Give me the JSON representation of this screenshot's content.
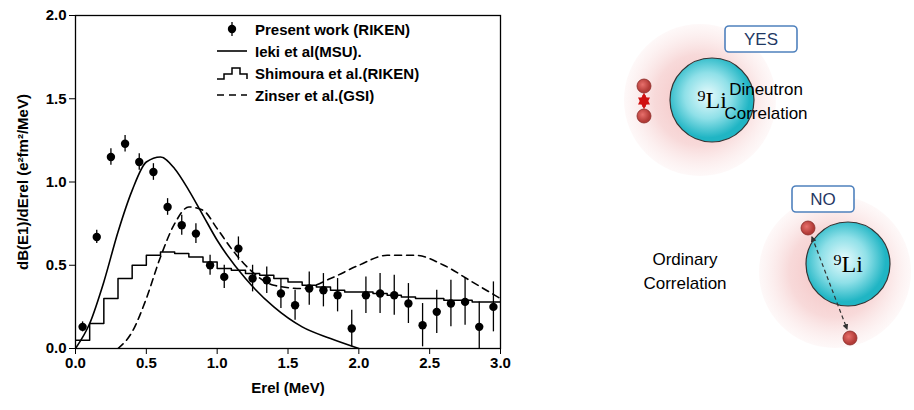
{
  "chart_data": {
    "type": "line",
    "x_label": "Erel (MeV)",
    "y_label": "dB(E1)/dErel (e²fm²/MeV)",
    "xlim": [
      0,
      3
    ],
    "ylim": [
      0,
      2
    ],
    "xticks": [
      {
        "value": 0,
        "label": "0.0"
      },
      0.5,
      {
        "value": 1,
        "label": "1.0"
      },
      1.5,
      {
        "value": 2,
        "label": "2.0"
      },
      2.5,
      {
        "value": 3,
        "label": "3.0"
      }
    ],
    "yticks": [
      {
        "value": 0,
        "label": "0.0"
      },
      0.5,
      {
        "value": 1,
        "label": "1.0"
      },
      1.5,
      {
        "value": 2,
        "label": "2.0"
      }
    ],
    "legend": "top-right",
    "series": [
      {
        "name": "Present work (RIKEN)",
        "type": "scatter",
        "marker": "circle",
        "color": "#000000",
        "x": [
          0.05,
          0.15,
          0.25,
          0.35,
          0.45,
          0.55,
          0.65,
          0.75,
          0.85,
          0.95,
          1.05,
          1.15,
          1.25,
          1.35,
          1.45,
          1.55,
          1.65,
          1.75,
          1.85,
          1.95,
          2.05,
          2.15,
          2.25,
          2.35,
          2.45,
          2.55,
          2.65,
          2.75,
          2.85,
          2.95
        ],
        "values": [
          0.13,
          0.67,
          1.15,
          1.23,
          1.12,
          1.06,
          0.85,
          0.74,
          0.69,
          0.5,
          0.43,
          0.6,
          0.42,
          0.41,
          0.33,
          0.26,
          0.36,
          0.35,
          0.32,
          0.12,
          0.32,
          0.33,
          0.32,
          0.27,
          0.14,
          0.22,
          0.27,
          0.28,
          0.13,
          0.25
        ],
        "errors": [
          0.03,
          0.04,
          0.05,
          0.05,
          0.05,
          0.05,
          0.05,
          0.06,
          0.06,
          0.06,
          0.07,
          0.07,
          0.08,
          0.08,
          0.09,
          0.09,
          0.1,
          0.1,
          0.1,
          0.11,
          0.11,
          0.12,
          0.12,
          0.12,
          0.13,
          0.13,
          0.14,
          0.14,
          0.15,
          0.15
        ]
      },
      {
        "name": "Ieki et al(MSU).",
        "type": "line",
        "line_style": "solid",
        "color": "#000000",
        "x": [
          0,
          0.1,
          0.2,
          0.3,
          0.4,
          0.5,
          0.6,
          0.7,
          0.8,
          0.9,
          1.0,
          1.2,
          1.4,
          1.6,
          1.8,
          2.0
        ],
        "values": [
          0,
          0.15,
          0.4,
          0.7,
          0.95,
          1.12,
          1.15,
          1.08,
          0.95,
          0.8,
          0.65,
          0.42,
          0.25,
          0.13,
          0.06,
          0
        ]
      },
      {
        "name": "Shimoura et al.(RIKEN)",
        "type": "step",
        "line_style": "solid",
        "color": "#000000",
        "bins": [
          0,
          0.1,
          0.2,
          0.3,
          0.4,
          0.5,
          0.6,
          0.7,
          0.8,
          0.9,
          1.0,
          1.1,
          1.2,
          1.3,
          1.4,
          1.5,
          1.6,
          1.7,
          1.8,
          1.9,
          2.0,
          2.1,
          2.2,
          2.3,
          2.4,
          2.5,
          2.6,
          2.7,
          2.8,
          2.9,
          3.0
        ],
        "values": [
          0.05,
          0.15,
          0.3,
          0.42,
          0.5,
          0.56,
          0.58,
          0.57,
          0.55,
          0.52,
          0.48,
          0.47,
          0.45,
          0.44,
          0.42,
          0.4,
          0.38,
          0.37,
          0.35,
          0.34,
          0.34,
          0.33,
          0.32,
          0.31,
          0.3,
          0.3,
          0.29,
          0.29,
          0.28,
          0.28
        ]
      },
      {
        "name": "Zinser et al.(GSI)",
        "type": "line",
        "line_style": "dashed",
        "color": "#000000",
        "x": [
          0.3,
          0.4,
          0.5,
          0.6,
          0.7,
          0.8,
          0.9,
          1.0,
          1.1,
          1.2,
          1.4,
          1.6,
          1.8,
          2.0,
          2.2,
          2.4,
          2.6,
          2.8,
          3.0
        ],
        "values": [
          0,
          0.1,
          0.3,
          0.55,
          0.75,
          0.85,
          0.83,
          0.72,
          0.6,
          0.5,
          0.38,
          0.36,
          0.42,
          0.5,
          0.56,
          0.56,
          0.5,
          0.4,
          0.3
        ]
      }
    ]
  },
  "diagram": {
    "panels": [
      {
        "core": "⁹Li",
        "badge": "YES",
        "label": "Dineutron Correlation"
      },
      {
        "core": "⁹Li",
        "badge": "NO",
        "label": "Ordinary Correlation"
      }
    ]
  }
}
